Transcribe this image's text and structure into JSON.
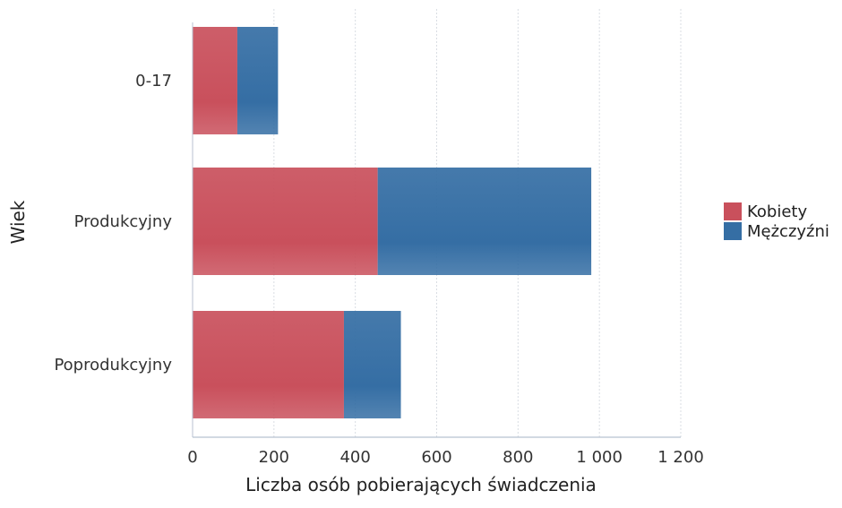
{
  "chart_data": {
    "type": "bar",
    "orientation": "horizontal",
    "stacked": true,
    "title": "",
    "xlabel": "Liczba osób pobierających świadczenia",
    "ylabel": "Wiek",
    "categories": [
      "0-17",
      "Produkcyjny",
      "Poprodukcyjny"
    ],
    "series": [
      {
        "name": "Kobiety",
        "values": [
          110,
          455,
          372
        ],
        "color": "#c9505c"
      },
      {
        "name": "Mężczyźni",
        "values": [
          100,
          525,
          140
        ],
        "color": "#356ea4"
      }
    ],
    "xlim": [
      0,
      1200
    ],
    "xticks": [
      0,
      200,
      400,
      600,
      800,
      1000,
      1200
    ],
    "xtick_labels": [
      "0",
      "200",
      "400",
      "600",
      "800",
      "1 000",
      "1 200"
    ],
    "grid": "vertical",
    "legend_position": "right"
  }
}
